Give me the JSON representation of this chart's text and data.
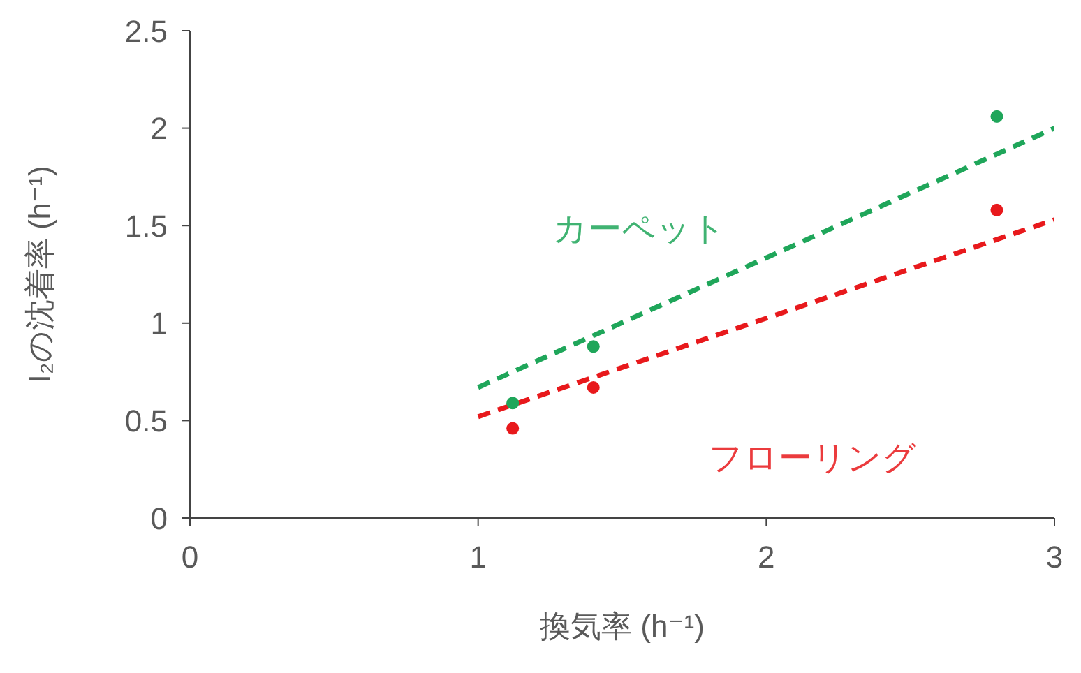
{
  "chart_data": {
    "type": "scatter",
    "xlabel": "換気率 (h⁻¹)",
    "ylabel": "I₂の沈着率 (h⁻¹)",
    "xlim": [
      0,
      3
    ],
    "xticks": [
      0,
      1,
      2,
      3
    ],
    "ylim": [
      0,
      2.5
    ],
    "yticks": [
      0,
      0.5,
      1,
      1.5,
      2,
      2.5
    ],
    "marker": "circle",
    "series": [
      {
        "name": "カーペット",
        "color": "#1fa65a",
        "x": [
          1.12,
          1.4,
          2.8
        ],
        "values": [
          0.59,
          0.88,
          2.06
        ]
      },
      {
        "name": "フローリング",
        "color": "#e8191c",
        "x": [
          1.12,
          1.4,
          2.8
        ],
        "values": [
          0.46,
          0.67,
          1.58
        ]
      },
      {
        "type": "line",
        "color": "#1fa65a",
        "line_style": "dashed",
        "marker": "none",
        "x": [
          1,
          3
        ],
        "values": [
          0.67,
          2.0
        ]
      },
      {
        "type": "line",
        "color": "#e8191c",
        "line_style": "dashed",
        "marker": "none",
        "x": [
          1,
          3
        ],
        "values": [
          0.52,
          1.53
        ]
      }
    ]
  }
}
